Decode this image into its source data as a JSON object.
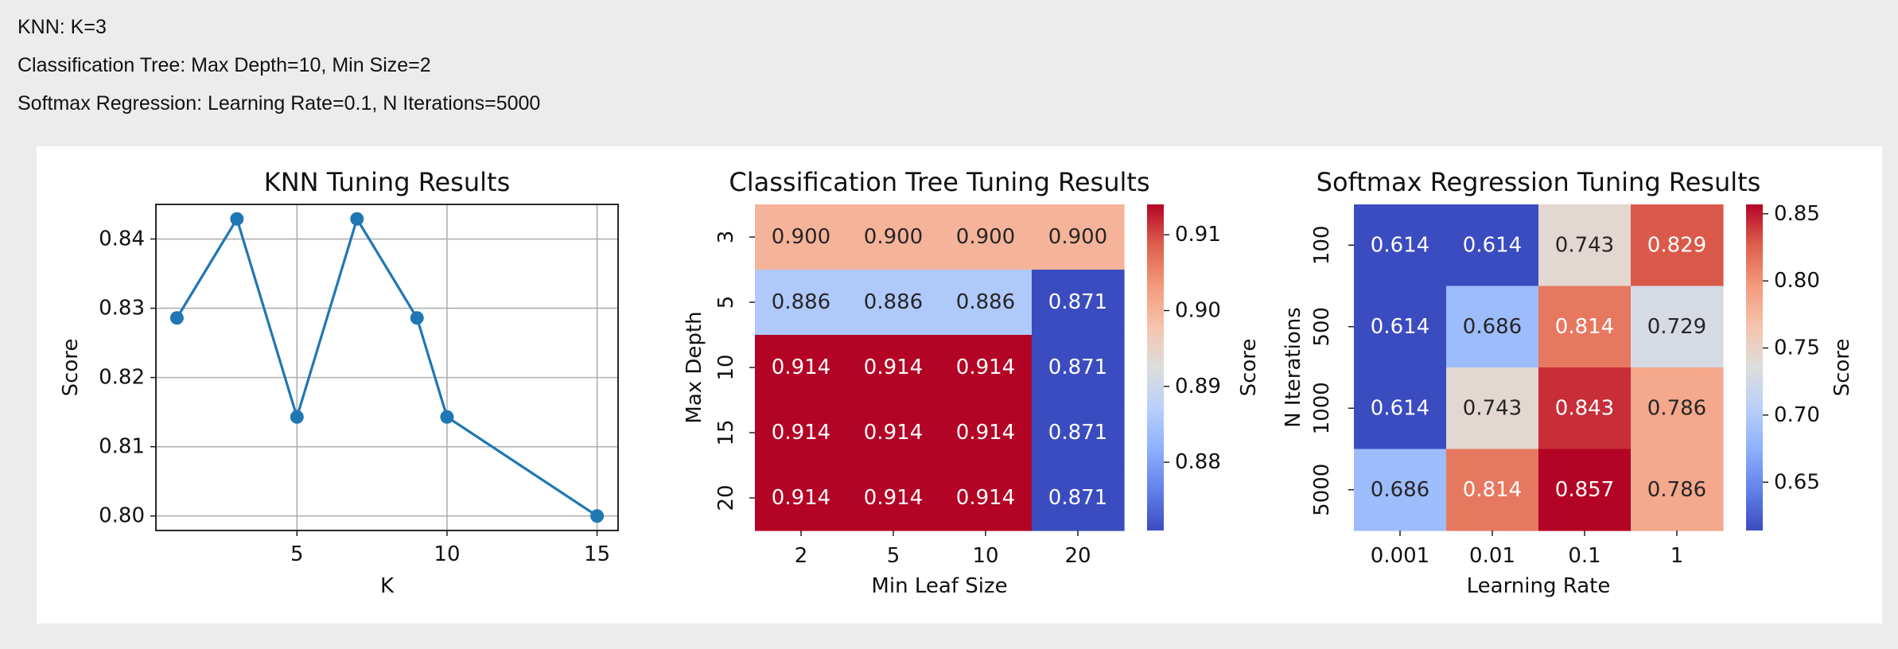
{
  "header": {
    "lines": [
      "KNN: K=3",
      "Classification Tree: Max Depth=10, Min Size=2",
      "Softmax Regression: Learning Rate=0.1, N Iterations=5000"
    ]
  },
  "chart_data": [
    {
      "type": "line",
      "title": "KNN Tuning Results",
      "xlabel": "K",
      "ylabel": "Score",
      "x": [
        1,
        3,
        5,
        7,
        9,
        10,
        15
      ],
      "y": [
        0.8286,
        0.8429,
        0.8143,
        0.8429,
        0.8286,
        0.8143,
        0.8
      ],
      "x_ticks": [
        5,
        10,
        15
      ],
      "y_ticks": [
        0.8,
        0.81,
        0.82,
        0.83,
        0.84
      ],
      "xlim": [
        0.3,
        15.7
      ],
      "ylim": [
        0.7979,
        0.845
      ],
      "grid": true,
      "color": "#1f77b4"
    },
    {
      "type": "heatmap",
      "title": "Classification Tree Tuning Results",
      "xlabel": "Min Leaf Size",
      "ylabel": "Max Depth",
      "x_categories": [
        "2",
        "5",
        "10",
        "20"
      ],
      "y_categories": [
        "3",
        "5",
        "10",
        "15",
        "20"
      ],
      "values": [
        [
          0.9,
          0.9,
          0.9,
          0.9
        ],
        [
          0.886,
          0.886,
          0.886,
          0.871
        ],
        [
          0.914,
          0.914,
          0.914,
          0.871
        ],
        [
          0.914,
          0.914,
          0.914,
          0.871
        ],
        [
          0.914,
          0.914,
          0.914,
          0.871
        ]
      ],
      "colorbar": {
        "label": "Score",
        "ticks": [
          0.88,
          0.89,
          0.9,
          0.91
        ],
        "range": [
          0.871,
          0.914
        ],
        "colormap": "coolwarm"
      }
    },
    {
      "type": "heatmap",
      "title": "Softmax Regression Tuning Results",
      "xlabel": "Learning Rate",
      "ylabel": "N Iterations",
      "x_categories": [
        "0.001",
        "0.01",
        "0.1",
        "1"
      ],
      "y_categories": [
        "100",
        "500",
        "1000",
        "5000"
      ],
      "values": [
        [
          0.614,
          0.614,
          0.743,
          0.829
        ],
        [
          0.614,
          0.686,
          0.814,
          0.729
        ],
        [
          0.614,
          0.743,
          0.843,
          0.786
        ],
        [
          0.686,
          0.814,
          0.857,
          0.786
        ]
      ],
      "colorbar": {
        "label": "Score",
        "ticks": [
          0.65,
          0.7,
          0.75,
          0.8,
          0.85
        ],
        "range": [
          0.614,
          0.857
        ],
        "colormap": "coolwarm"
      }
    }
  ]
}
